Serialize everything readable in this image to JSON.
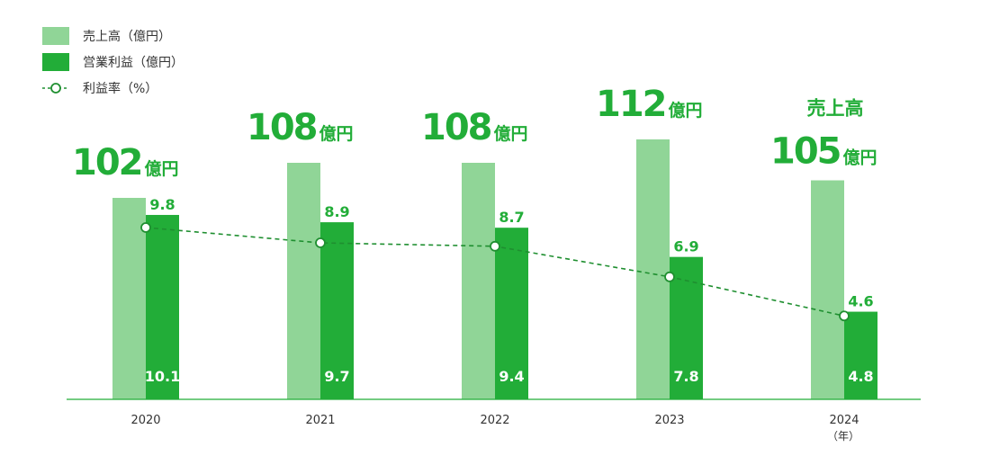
{
  "legend": {
    "sales": "売上高（億円）",
    "operating_profit": "営業利益（億円）",
    "profit_rate": "利益率（%）"
  },
  "labels": {
    "sales_unit": "億円",
    "latest_sales_heading": "売上高",
    "x_unit": "（年）"
  },
  "colors": {
    "sales": "#90d597",
    "operating_profit": "#22ad38",
    "rate_line": "#1f8f30",
    "label_green": "#22ad38",
    "axis": "#22ad38"
  },
  "chart_data": {
    "type": "bar",
    "categories": [
      "2020",
      "2021",
      "2022",
      "2023",
      "2024"
    ],
    "series": [
      {
        "name": "売上高（億円）",
        "type": "bar",
        "values": [
          102,
          108,
          108,
          112,
          105
        ]
      },
      {
        "name": "営業利益（億円）",
        "type": "bar",
        "values": [
          10.1,
          9.7,
          9.4,
          7.8,
          4.8
        ]
      },
      {
        "name": "利益率（%）",
        "type": "line",
        "values": [
          9.8,
          8.9,
          8.7,
          6.9,
          4.6
        ]
      }
    ],
    "value_labels": {
      "sales": [
        "102",
        "108",
        "108",
        "112",
        "105"
      ],
      "operating_profit": [
        "10.1",
        "9.7",
        "9.4",
        "7.8",
        "4.8"
      ],
      "profit_rate": [
        "9.8",
        "8.9",
        "8.7",
        "6.9",
        "4.6"
      ]
    },
    "legend_position": "top-left",
    "grid": false
  }
}
